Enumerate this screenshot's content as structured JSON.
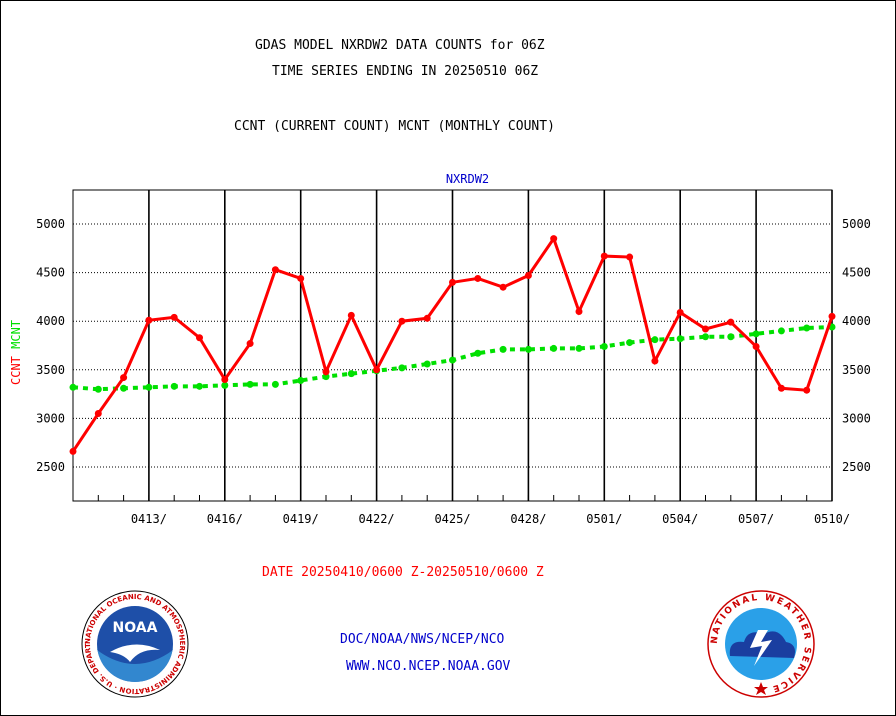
{
  "header": {
    "title_line1": "GDAS MODEL NXRDW2 DATA COUNTS for 06Z",
    "title_line2": "TIME SERIES ENDING IN 20250510 06Z",
    "subtitle": "CCNT (CURRENT COUNT) MCNT (MONTHLY COUNT)"
  },
  "footer": {
    "date_range": "DATE 20250410/0600 Z-20250510/0600 Z",
    "org_path": "DOC/NOAA/NWS/NCEP/NCO",
    "website": "WWW.NCO.NCEP.NOAA.GOV"
  },
  "logos": {
    "noaa_text": "NOAA",
    "noaa_ring": "NATIONAL OCEANIC AND ATMOSPHERIC ADMINISTRATION · U.S. DEPARTMENT OF COMMERCE",
    "nws_ring": "NATIONAL WEATHER SERVICE"
  },
  "colors": {
    "ccnt": "#ff0000",
    "mcnt": "#00e000",
    "station": "#0000cc",
    "date": "#ff0000"
  },
  "chart_data": {
    "type": "line",
    "title": "NXRDW2",
    "ylabel_ccnt": "CCNT",
    "ylabel_mcnt": "MCNT",
    "ylim": [
      2150,
      5350
    ],
    "yticks": [
      2500,
      3000,
      3500,
      4000,
      4500,
      5000
    ],
    "xlim": [
      0,
      30
    ],
    "xticks": [
      {
        "x": 3,
        "label": "0413/"
      },
      {
        "x": 6,
        "label": "0416/"
      },
      {
        "x": 9,
        "label": "0419/"
      },
      {
        "x": 12,
        "label": "0422/"
      },
      {
        "x": 15,
        "label": "0425/"
      },
      {
        "x": 18,
        "label": "0428/"
      },
      {
        "x": 21,
        "label": "0501/"
      },
      {
        "x": 24,
        "label": "0504/"
      },
      {
        "x": 27,
        "label": "0507/"
      },
      {
        "x": 30,
        "label": "0510/"
      }
    ],
    "grid": true,
    "series": [
      {
        "name": "CCNT",
        "x": [
          0,
          1,
          2,
          3,
          4,
          5,
          6,
          7,
          8,
          9,
          10,
          11,
          12,
          13,
          14,
          15,
          16,
          17,
          18,
          19,
          20,
          21,
          22,
          23,
          24,
          25,
          26,
          27,
          28,
          29,
          30
        ],
        "values": [
          2660,
          3050,
          3420,
          4010,
          4040,
          3830,
          3400,
          3770,
          4530,
          4440,
          3480,
          4060,
          3500,
          4000,
          4030,
          4400,
          4440,
          4350,
          4470,
          4850,
          4100,
          4670,
          4660,
          3590,
          4090,
          3920,
          3990,
          3740,
          3310,
          3290,
          4050
        ]
      },
      {
        "name": "MCNT",
        "x": [
          0,
          1,
          2,
          3,
          4,
          5,
          6,
          7,
          8,
          9,
          10,
          11,
          12,
          13,
          14,
          15,
          16,
          17,
          18,
          19,
          20,
          21,
          22,
          23,
          24,
          25,
          26,
          27,
          28,
          29,
          30
        ],
        "values": [
          3320,
          3300,
          3310,
          3320,
          3330,
          3330,
          3340,
          3350,
          3350,
          3390,
          3430,
          3460,
          3490,
          3520,
          3560,
          3600,
          3670,
          3710,
          3710,
          3720,
          3720,
          3740,
          3780,
          3810,
          3820,
          3840,
          3840,
          3870,
          3900,
          3930,
          3940
        ]
      }
    ]
  }
}
